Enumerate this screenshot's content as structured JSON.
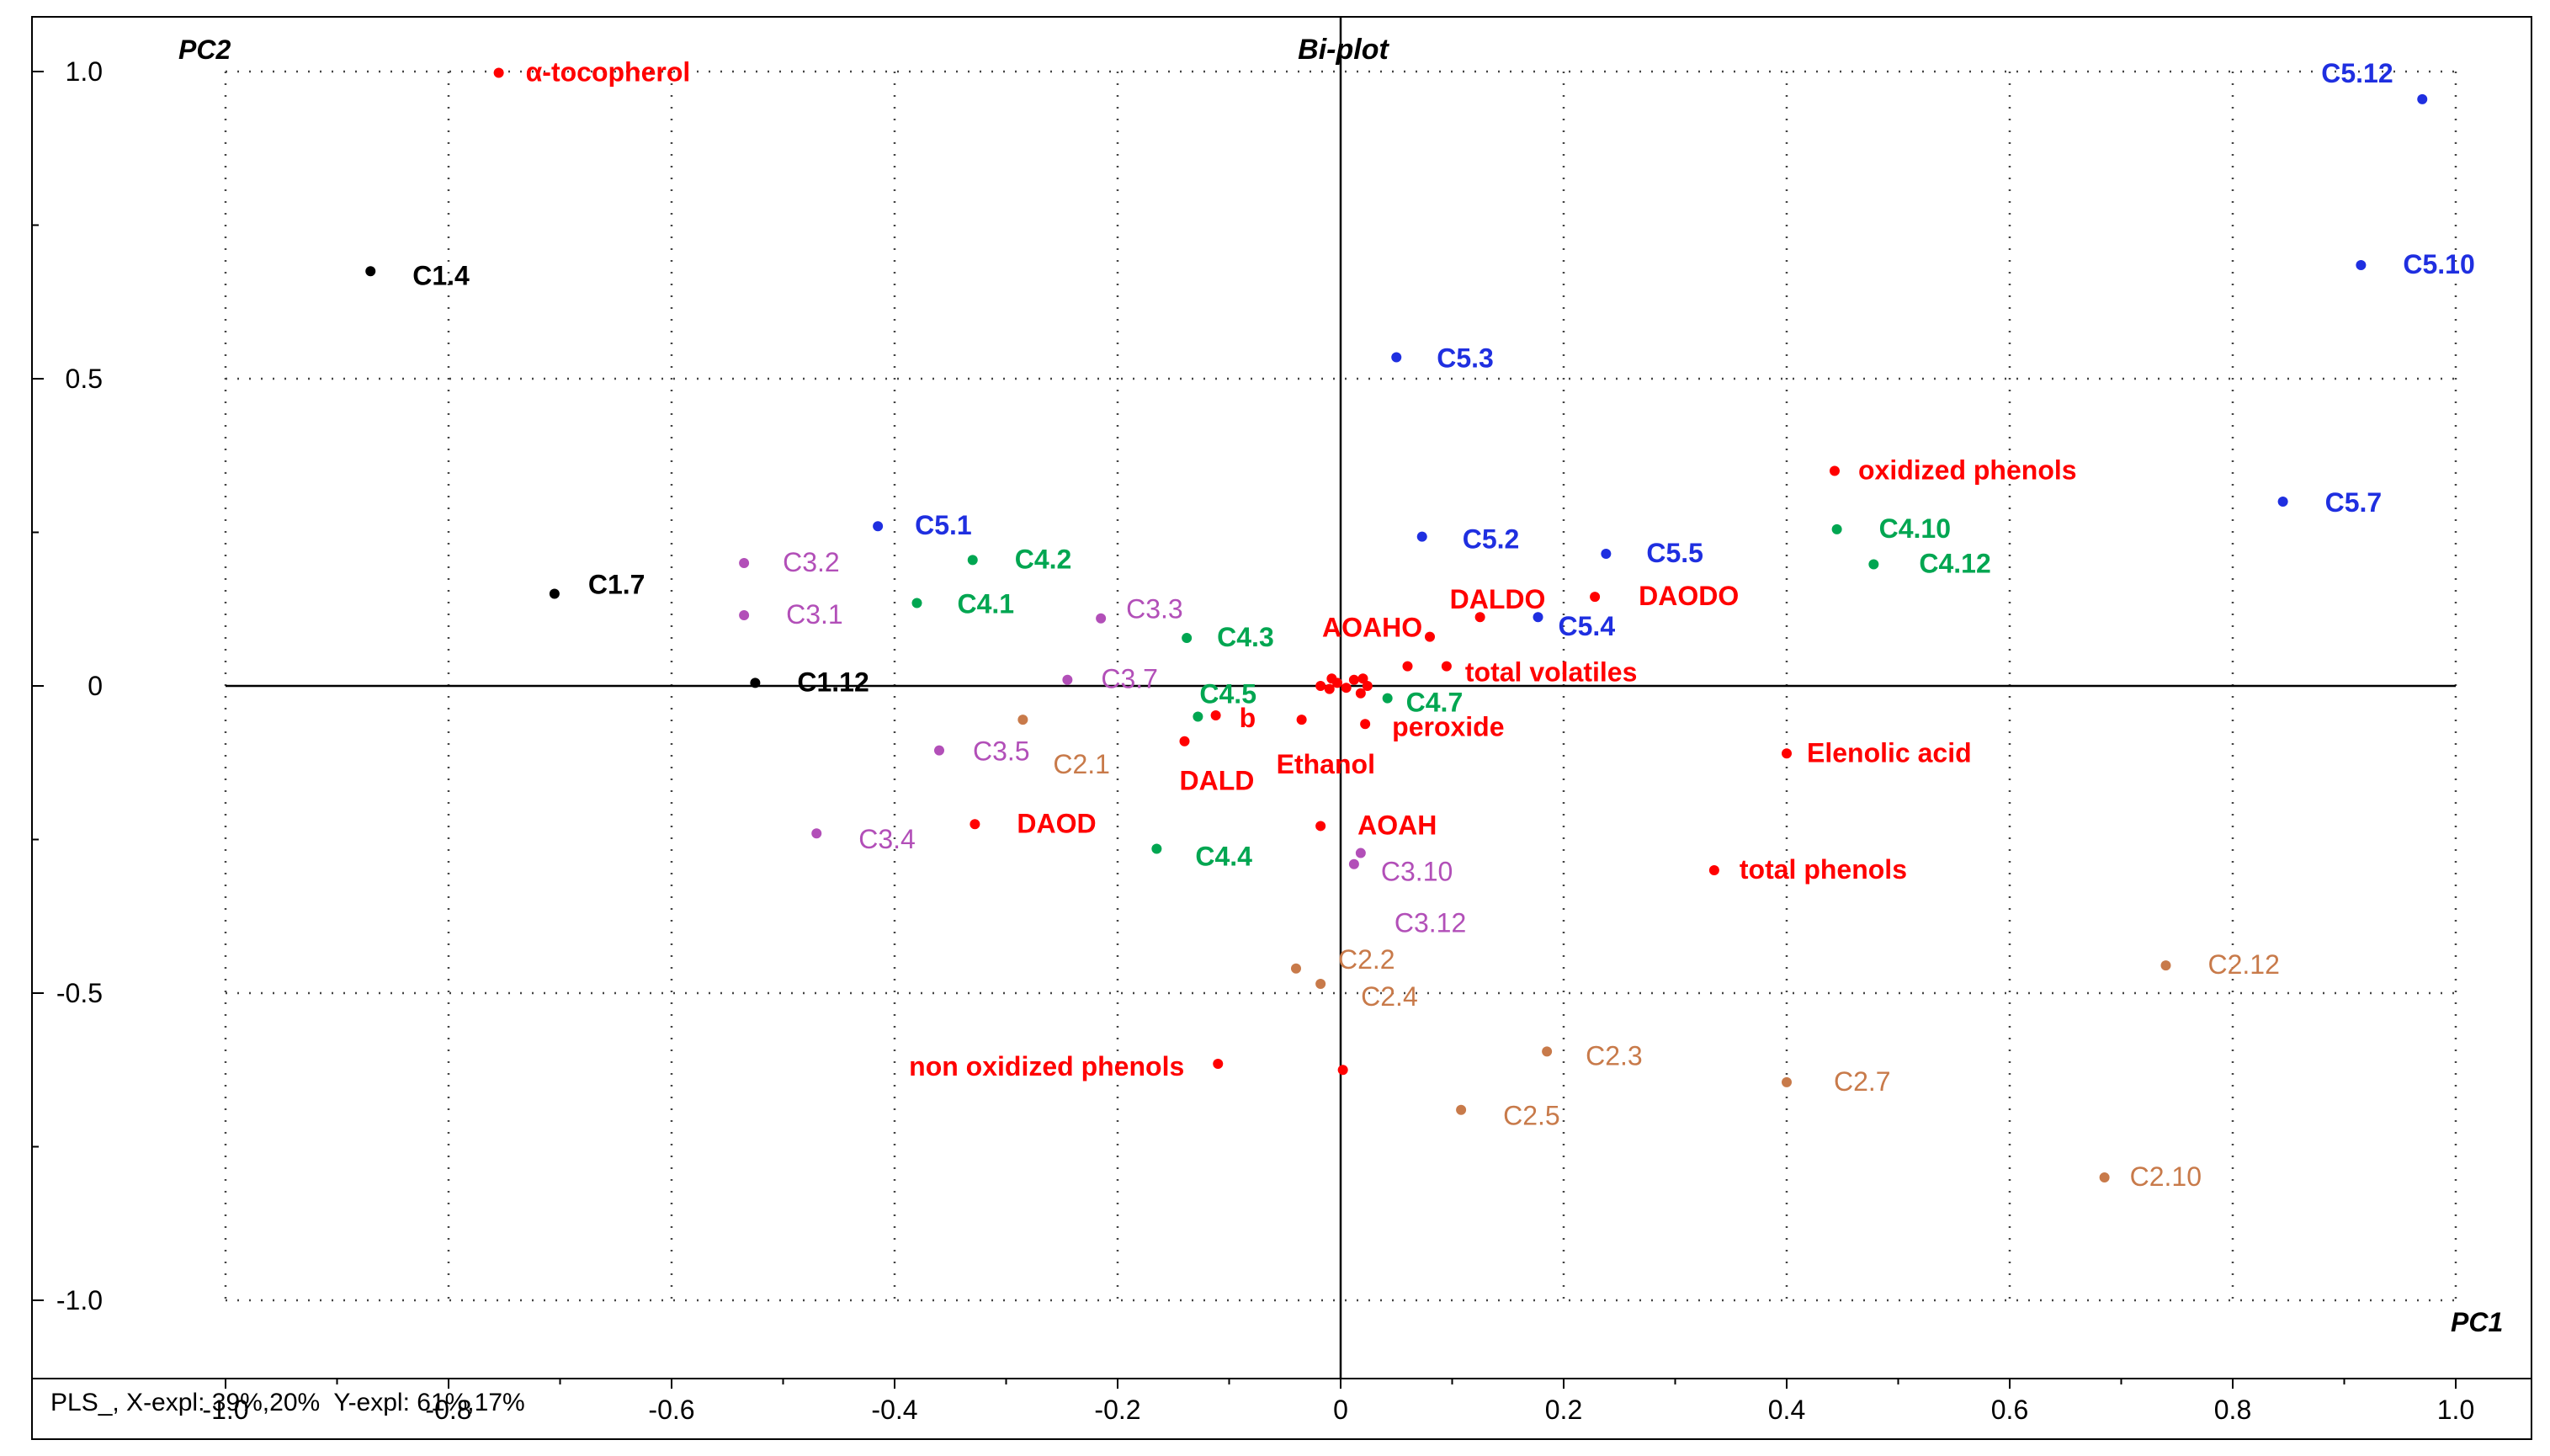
{
  "chart_data": {
    "type": "scatter",
    "title": "Bi-plot",
    "xlabel": "PC1",
    "ylabel": "PC2",
    "xlim": [
      -1.1,
      1.1
    ],
    "ylim": [
      -1.08,
      1.08
    ],
    "x_ticks": [
      "-1.0",
      "-0.8",
      "-0.6",
      "-0.4",
      "-0.2",
      "0",
      "0.2",
      "0.4",
      "0.6",
      "0.8",
      "1.0"
    ],
    "y_ticks": [
      "1.0",
      "0.5",
      "0",
      "-0.5",
      "-1.0"
    ],
    "grid": true,
    "colors": {
      "C1": "#000000",
      "C2": "#c87a4a",
      "C3": "#b24fb8",
      "C4": "#00a651",
      "C5": "#1f2fe0",
      "variables": "#ff0000"
    },
    "series": [
      {
        "name": "C1",
        "color_key": "C1",
        "points": [
          {
            "label": "C1.4",
            "x": -0.87,
            "y": 0.675
          },
          {
            "label": "C1.7",
            "x": -0.705,
            "y": 0.15
          },
          {
            "label": "C1.12",
            "x": -0.525,
            "y": 0.005
          }
        ]
      },
      {
        "name": "C2",
        "color_key": "C2",
        "points": [
          {
            "label": "C2.1",
            "x": -0.285,
            "y": -0.055
          },
          {
            "label": "C2.2",
            "x": -0.04,
            "y": -0.46
          },
          {
            "label": "C2.4",
            "x": -0.018,
            "y": -0.485
          },
          {
            "label": "C2.3",
            "x": 0.185,
            "y": -0.595
          },
          {
            "label": "C2.5",
            "x": 0.108,
            "y": -0.69
          },
          {
            "label": "C2.7",
            "x": 0.4,
            "y": -0.645
          },
          {
            "label": "C2.10",
            "x": 0.685,
            "y": -0.8
          },
          {
            "label": "C2.12",
            "x": 0.74,
            "y": -0.455
          }
        ]
      },
      {
        "name": "C3",
        "color_key": "C3",
        "points": [
          {
            "label": "C3.2",
            "x": -0.535,
            "y": 0.2
          },
          {
            "label": "C3.1",
            "x": -0.535,
            "y": 0.115
          },
          {
            "label": "C3.3",
            "x": -0.215,
            "y": 0.11
          },
          {
            "label": "C3.7",
            "x": -0.245,
            "y": 0.01
          },
          {
            "label": "C3.5",
            "x": -0.36,
            "y": -0.105
          },
          {
            "label": "C3.4",
            "x": -0.47,
            "y": -0.24
          },
          {
            "label": "C3.10",
            "x": 0.012,
            "y": -0.29
          },
          {
            "label": "C3.12",
            "x": 0.018,
            "y": -0.272
          }
        ]
      },
      {
        "name": "C4",
        "color_key": "C4",
        "points": [
          {
            "label": "C4.2",
            "x": -0.33,
            "y": 0.205
          },
          {
            "label": "C4.1",
            "x": -0.38,
            "y": 0.135
          },
          {
            "label": "C4.3",
            "x": -0.138,
            "y": 0.078
          },
          {
            "label": "C4.5",
            "x": -0.128,
            "y": -0.05
          },
          {
            "label": "C4.4",
            "x": -0.165,
            "y": -0.265
          },
          {
            "label": "C4.7",
            "x": 0.042,
            "y": -0.02
          },
          {
            "label": "C4.10",
            "x": 0.445,
            "y": 0.255
          },
          {
            "label": "C4.12",
            "x": 0.478,
            "y": 0.198
          }
        ]
      },
      {
        "name": "C5",
        "color_key": "C5",
        "points": [
          {
            "label": "C5.12",
            "x": 0.97,
            "y": 0.955
          },
          {
            "label": "C5.10",
            "x": 0.915,
            "y": 0.685
          },
          {
            "label": "C5.3",
            "x": 0.05,
            "y": 0.535
          },
          {
            "label": "C5.7",
            "x": 0.845,
            "y": 0.3
          },
          {
            "label": "C5.1",
            "x": -0.415,
            "y": 0.26
          },
          {
            "label": "C5.2",
            "x": 0.073,
            "y": 0.243
          },
          {
            "label": "C5.5",
            "x": 0.238,
            "y": 0.215
          },
          {
            "label": "C5.4",
            "x": 0.177,
            "y": 0.112
          }
        ]
      },
      {
        "name": "Variables",
        "color_key": "variables",
        "points": [
          {
            "label": "α-tocopherol",
            "x": -0.755,
            "y": 0.998
          },
          {
            "label": "oxidized phenols",
            "x": 0.443,
            "y": 0.35
          },
          {
            "label": "DALDO",
            "x": 0.125,
            "y": 0.112
          },
          {
            "label": "DAODO",
            "x": 0.228,
            "y": 0.145
          },
          {
            "label": "AOAHO",
            "x": 0.08,
            "y": 0.08
          },
          {
            "label": "total volatiles",
            "x": 0.095,
            "y": 0.032
          },
          {
            "label": "b",
            "x": -0.112,
            "y": -0.048
          },
          {
            "label": "Ethanol",
            "x": -0.035,
            "y": -0.055
          },
          {
            "label": "peroxide",
            "x": 0.022,
            "y": -0.062
          },
          {
            "label": "DALD",
            "x": -0.14,
            "y": -0.09
          },
          {
            "label": "Elenolic acid",
            "x": 0.4,
            "y": -0.11
          },
          {
            "label": "DAOD",
            "x": -0.328,
            "y": -0.225
          },
          {
            "label": "AOAH",
            "x": -0.018,
            "y": -0.228
          },
          {
            "label": "total phenols",
            "x": 0.335,
            "y": -0.3
          },
          {
            "label": "non oxidized phenols",
            "x": -0.11,
            "y": -0.615
          }
        ]
      }
    ],
    "unlabeled_points": [
      {
        "x": -0.018,
        "y": 0.0
      },
      {
        "x": -0.01,
        "y": -0.005
      },
      {
        "x": -0.003,
        "y": 0.005
      },
      {
        "x": 0.005,
        "y": -0.003
      },
      {
        "x": 0.012,
        "y": 0.01
      },
      {
        "x": 0.02,
        "y": 0.012
      },
      {
        "x": 0.024,
        "y": 0.0
      },
      {
        "x": 0.018,
        "y": -0.012
      },
      {
        "x": -0.008,
        "y": 0.012
      },
      {
        "x": 0.06,
        "y": 0.032
      },
      {
        "x": 0.002,
        "y": -0.625
      }
    ],
    "footer": "PLS_, X-expl: 39%,20%  Y-expl: 61%,17%"
  }
}
